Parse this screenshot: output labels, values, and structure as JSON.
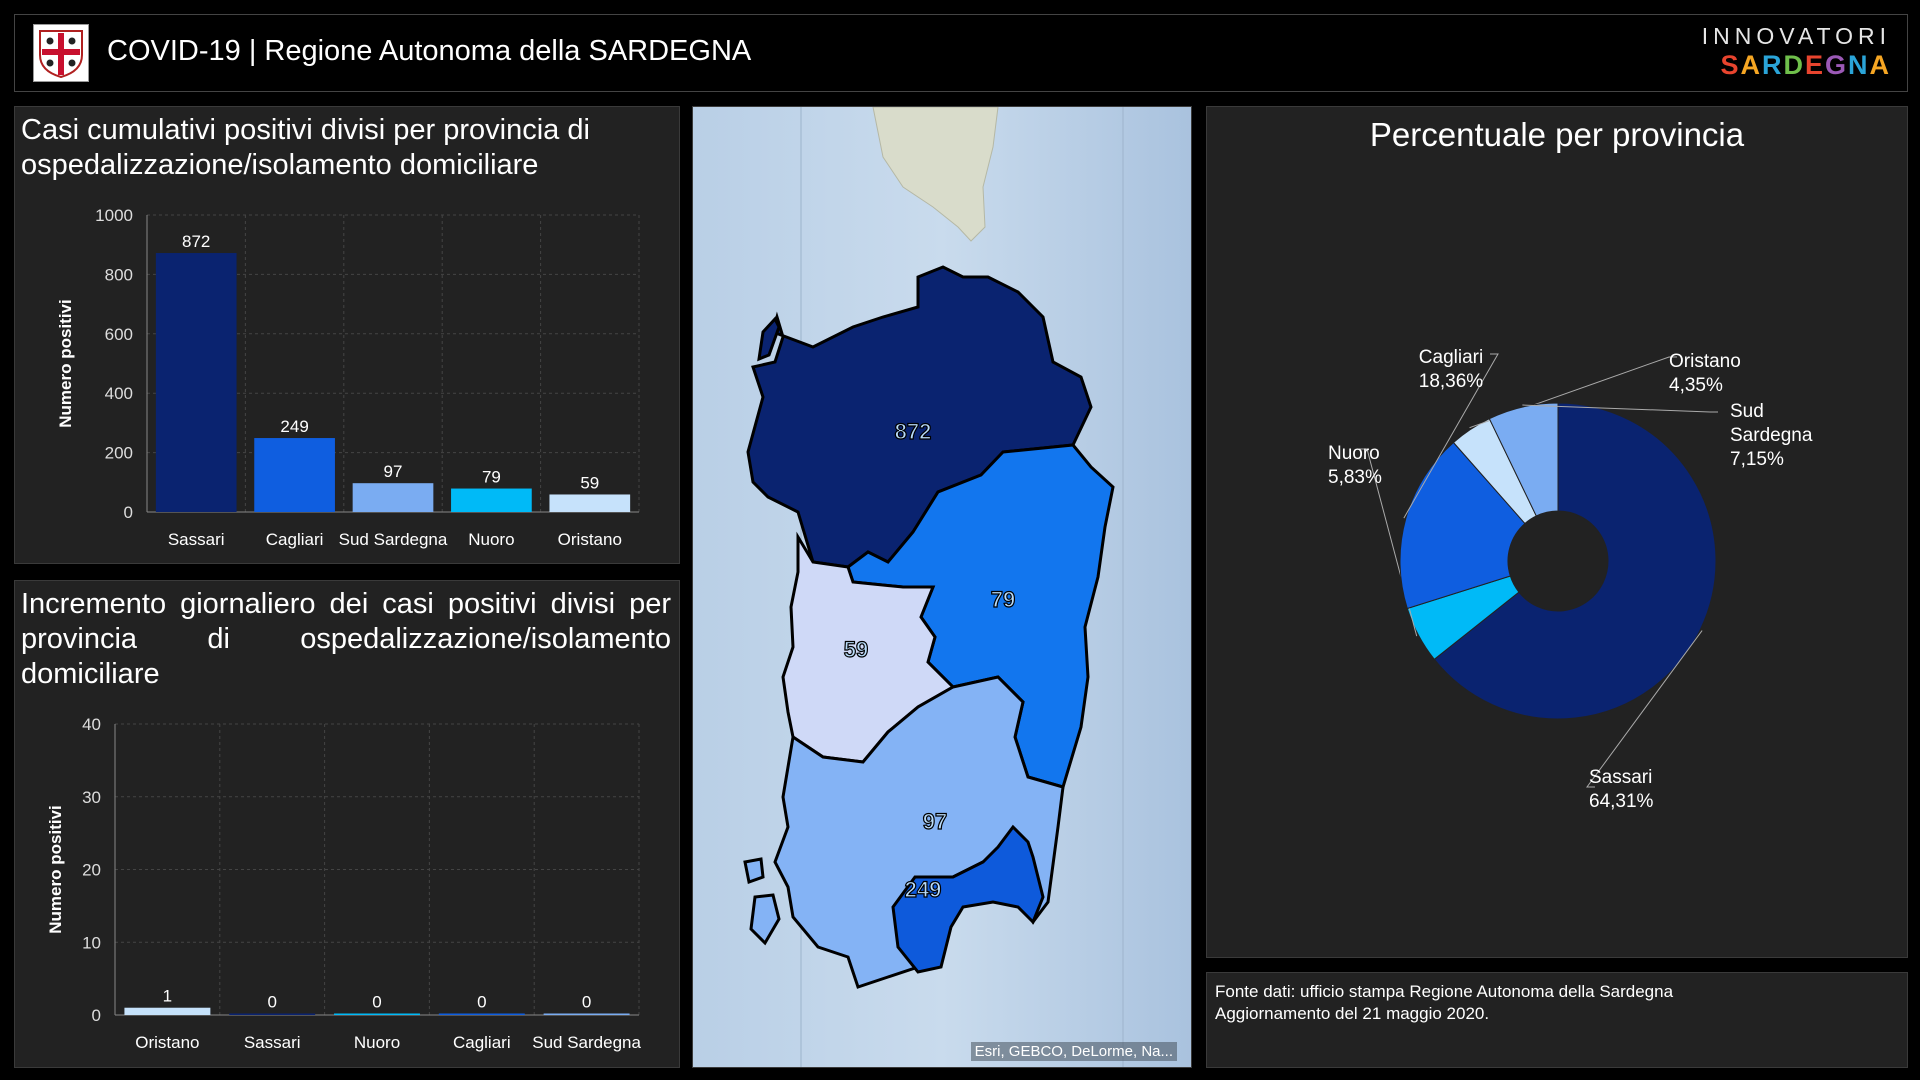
{
  "header": {
    "title": "COVID-19 | Regione Autonoma della SARDEGNA",
    "brand_line1": "INNOVATORI",
    "brand_line2": "SARDEGNA",
    "brand_colors": [
      "#e8442e",
      "#f6a623",
      "#2aa4d8",
      "#6fbf4b",
      "#e8442e",
      "#9b59b6",
      "#2aa4d8",
      "#f6a623"
    ]
  },
  "colors": {
    "background": "#000000",
    "panel": "#222222",
    "grid": "#444444",
    "Sassari": "#0a2370",
    "Cagliari": "#0f5ee0",
    "Sud Sardegna": "#7aacf2",
    "Nuoro": "#00baf7",
    "Oristano": "#c6e2fb"
  },
  "panels": {
    "cumulative_title": "Casi cumulativi positivi divisi per provincia di ospedalizzazione/isolamento domiciliare",
    "daily_title": "Incremento giornaliero dei casi positivi divisi per provincia di ospedalizzazione/isolamento domiciliare",
    "pie_title": "Percentuale per provincia",
    "source_line1": "Fonte dati: ufficio stampa Regione Autonoma della Sardegna",
    "source_line2": "Aggiornamento del 21 maggio 2020.",
    "map_attribution": "Esri, GEBCO, DeLorme, Na..."
  },
  "map": {
    "labels": [
      "872",
      "79",
      "59",
      "97",
      "249"
    ]
  },
  "chart_data": [
    {
      "type": "bar",
      "title": "Casi cumulativi positivi divisi per provincia di ospedalizzazione/isolamento domiciliare",
      "categories": [
        "Sassari",
        "Cagliari",
        "Sud Sardegna",
        "Nuoro",
        "Oristano"
      ],
      "values": [
        872,
        249,
        97,
        79,
        59
      ],
      "xlabel": "",
      "ylabel": "Numero positivi",
      "ylim": [
        0,
        1000
      ],
      "yticks": [
        0,
        200,
        400,
        600,
        800,
        1000
      ],
      "grid": true,
      "data_labels": true
    },
    {
      "type": "bar",
      "title": "Incremento giornaliero dei casi positivi divisi per provincia di ospedalizzazione/isolamento domiciliare",
      "categories": [
        "Oristano",
        "Sassari",
        "Nuoro",
        "Cagliari",
        "Sud Sardegna"
      ],
      "values": [
        1,
        0,
        0,
        0,
        0
      ],
      "xlabel": "",
      "ylabel": "Numero positivi",
      "ylim": [
        0,
        40
      ],
      "yticks": [
        0,
        10,
        20,
        30,
        40
      ],
      "grid": true,
      "data_labels": true
    },
    {
      "type": "pie",
      "title": "Percentuale per provincia",
      "donut": true,
      "slices": [
        {
          "label": "Sassari",
          "value": 64.31,
          "display": "64,31%"
        },
        {
          "label": "Nuoro",
          "value": 5.83,
          "display": "5,83%"
        },
        {
          "label": "Cagliari",
          "value": 18.36,
          "display": "18,36%"
        },
        {
          "label": "Oristano",
          "value": 4.35,
          "display": "4,35%"
        },
        {
          "label": "Sud Sardegna",
          "value": 7.15,
          "display": "7,15%"
        }
      ]
    }
  ]
}
